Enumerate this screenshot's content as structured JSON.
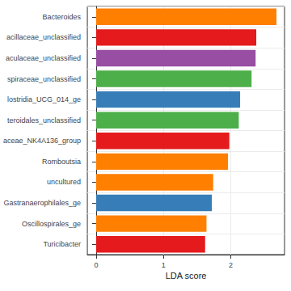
{
  "chart_data": {
    "type": "bar",
    "orientation": "horizontal",
    "categories": [
      "Bacteroides",
      "acillaceae_unclassified",
      "aculaceae_unclassified",
      "spiraceae_unclassified",
      "lostridia_UCG_014_ge",
      "teroidales_unclassified",
      "aceae_NK4A136_group",
      "Romboutsia",
      "uncultured",
      "Gastranaerophilales_ge",
      "Oscillospirales_ge",
      "Turicibacter"
    ],
    "values": [
      2.68,
      2.38,
      2.37,
      2.31,
      2.14,
      2.12,
      1.98,
      1.96,
      1.74,
      1.72,
      1.64,
      1.62
    ],
    "colors": [
      "#FF7F00",
      "#E41A1C",
      "#984EA3",
      "#4DAF4A",
      "#377EB8",
      "#4DAF4A",
      "#E41A1C",
      "#FF7F00",
      "#FF7F00",
      "#377EB8",
      "#FF7F00",
      "#E41A1C"
    ],
    "x_label": "LDA score",
    "xlim": [
      -0.13,
      2.8
    ],
    "xticks": [
      0,
      1,
      2
    ],
    "grid": true
  }
}
